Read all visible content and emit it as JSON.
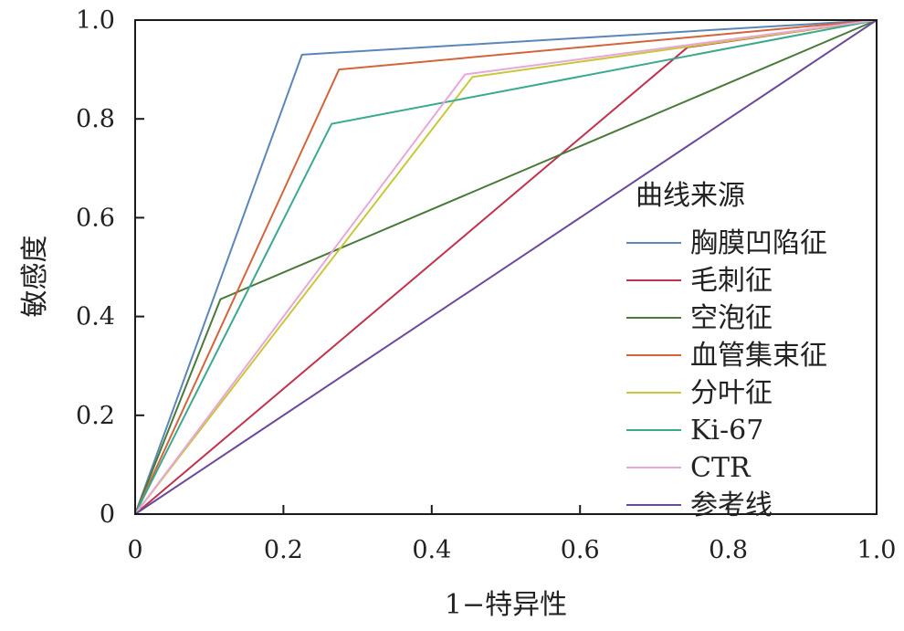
{
  "chart_data": {
    "type": "line",
    "title": "",
    "xlabel": "1−特异性",
    "ylabel": "敏感度",
    "xlim": [
      0,
      1.0
    ],
    "ylim": [
      0,
      1.0
    ],
    "x_ticks": [
      0,
      0.2,
      0.4,
      0.6,
      0.8,
      1.0
    ],
    "y_ticks": [
      0,
      0.2,
      0.4,
      0.6,
      0.8,
      1.0
    ],
    "x_tick_labels": [
      "0",
      "0.2",
      "0.4",
      "0.6",
      "0.8",
      "1.0"
    ],
    "y_tick_labels": [
      "0",
      "0.2",
      "0.4",
      "0.6",
      "0.8",
      "1.0"
    ],
    "grid": false,
    "legend_title": "曲线来源",
    "legend_position": "right",
    "series": [
      {
        "name": "胸膜凹陷征",
        "color": "#5b86b8",
        "points": [
          [
            0,
            0
          ],
          [
            0.225,
            0.93
          ],
          [
            1.0,
            1.0
          ]
        ]
      },
      {
        "name": "毛刺征",
        "color": "#c0334f",
        "points": [
          [
            0,
            0
          ],
          [
            0.745,
            0.945
          ],
          [
            1.0,
            1.0
          ]
        ]
      },
      {
        "name": "空泡征",
        "color": "#4a7a3a",
        "points": [
          [
            0,
            0
          ],
          [
            0.115,
            0.435
          ],
          [
            1.0,
            1.0
          ]
        ]
      },
      {
        "name": "血管集束征",
        "color": "#d4643c",
        "points": [
          [
            0,
            0
          ],
          [
            0.275,
            0.9
          ],
          [
            1.0,
            1.0
          ]
        ]
      },
      {
        "name": "分叶征",
        "color": "#c8c83a",
        "points": [
          [
            0,
            0
          ],
          [
            0.455,
            0.885
          ],
          [
            1.0,
            1.0
          ]
        ]
      },
      {
        "name": "Ki-67",
        "color": "#3aaa8e",
        "points": [
          [
            0,
            0
          ],
          [
            0.265,
            0.79
          ],
          [
            1.0,
            1.0
          ]
        ]
      },
      {
        "name": "CTR",
        "color": "#e9a6d8",
        "points": [
          [
            0,
            0
          ],
          [
            0.445,
            0.89
          ],
          [
            1.0,
            1.0
          ]
        ]
      },
      {
        "name": "参考线",
        "color": "#6a4a9a",
        "points": [
          [
            0,
            0
          ],
          [
            1.0,
            1.0
          ]
        ]
      }
    ]
  }
}
